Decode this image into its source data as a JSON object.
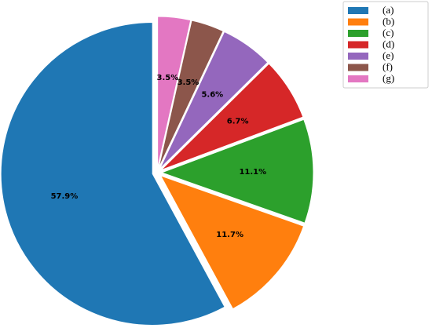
{
  "chart_data": {
    "type": "pie",
    "categories": [
      "(a)",
      "(b)",
      "(c)",
      "(d)",
      "(e)",
      "(f)",
      "(g)"
    ],
    "values": [
      57.9,
      11.7,
      11.1,
      6.7,
      5.6,
      3.5,
      3.5
    ],
    "value_labels": [
      "57.9%",
      "11.7%",
      "11.1%",
      "6.7%",
      "5.6%",
      "3.5%",
      "3.5%"
    ],
    "colors": [
      "#1f77b4",
      "#ff7f0e",
      "#2ca02c",
      "#d62728",
      "#9467bd",
      "#8c564b",
      "#e377c2"
    ],
    "legend": "upper right"
  }
}
